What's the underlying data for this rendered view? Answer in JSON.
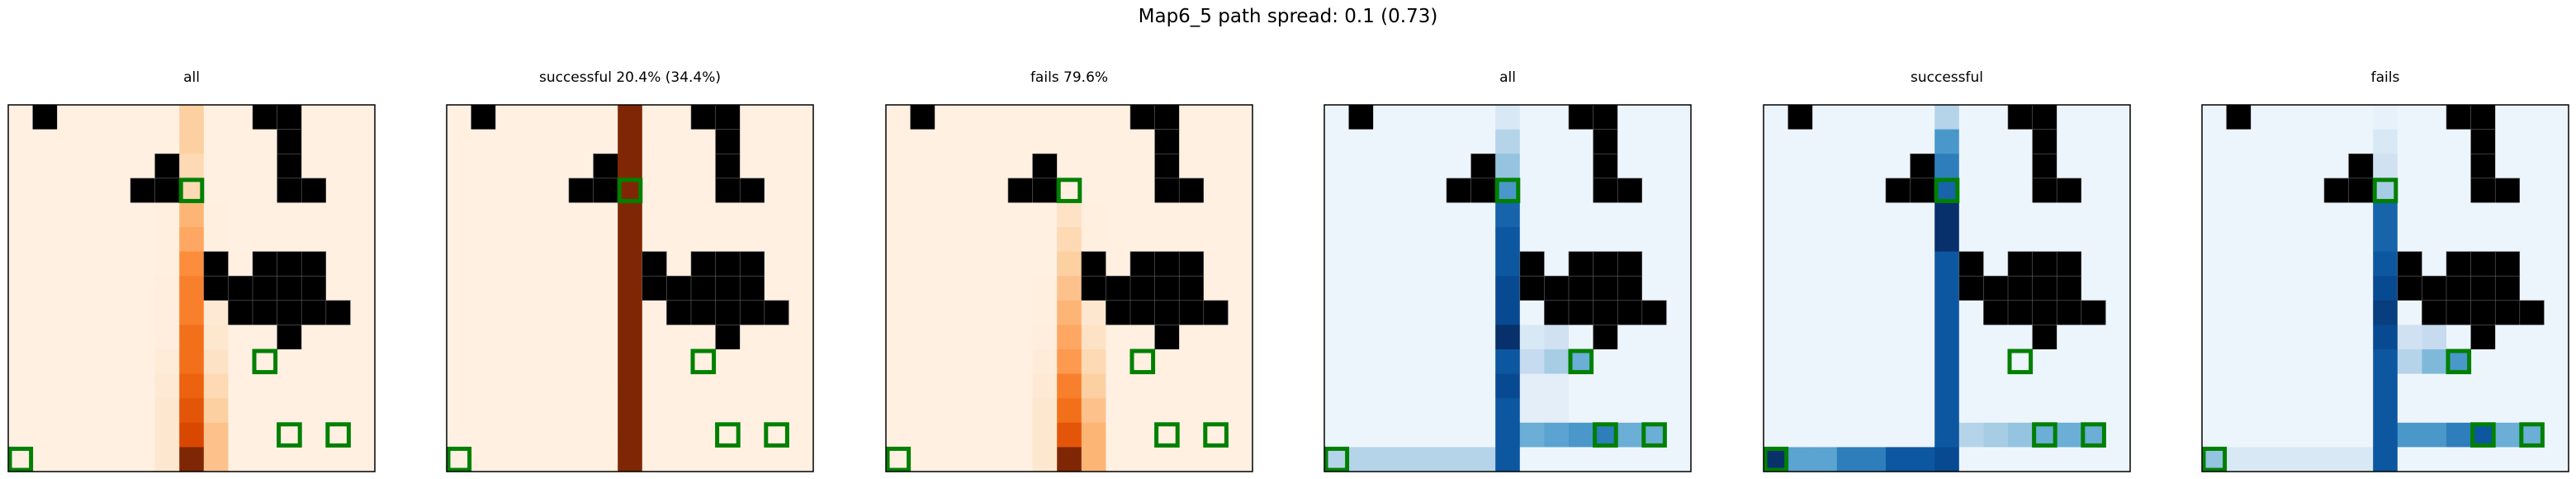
{
  "figure": {
    "suptitle": "Map6_5 path spread: 0.1 (0.73)"
  },
  "chart_data": [
    {
      "type": "heatmap",
      "title": "all",
      "colormap": "Oranges",
      "grid": [
        15,
        15
      ],
      "obstacles": [
        [
          1,
          0
        ],
        [
          10,
          0
        ],
        [
          11,
          0
        ],
        [
          11,
          1
        ],
        [
          6,
          2
        ],
        [
          11,
          2
        ],
        [
          5,
          3
        ],
        [
          6,
          3
        ],
        [
          11,
          3
        ],
        [
          12,
          3
        ],
        [
          8,
          6
        ],
        [
          10,
          6
        ],
        [
          11,
          6
        ],
        [
          12,
          6
        ],
        [
          8,
          7
        ],
        [
          9,
          7
        ],
        [
          10,
          7
        ],
        [
          11,
          7
        ],
        [
          12,
          7
        ],
        [
          9,
          8
        ],
        [
          10,
          8
        ],
        [
          11,
          8
        ],
        [
          12,
          8
        ],
        [
          13,
          8
        ],
        [
          11,
          9
        ]
      ],
      "markers": [
        [
          7,
          3
        ],
        [
          10,
          10
        ],
        [
          11,
          13
        ],
        [
          13,
          13
        ],
        [
          0,
          14
        ]
      ],
      "column_intensity": [
        [
          7,
          [
            0.25,
            0.25,
            0.2,
            0.2,
            0.35,
            0.4,
            0.5,
            0.55,
            0.55,
            0.6,
            0.6,
            0.65,
            0.7,
            0.75,
            1.0
          ]
        ],
        [
          8,
          [
            0,
            0,
            0,
            0,
            0.05,
            0.05,
            0.08,
            0.1,
            0.1,
            0.12,
            0.15,
            0.2,
            0.25,
            0.3,
            0.3
          ]
        ],
        [
          6,
          [
            0,
            0,
            0,
            0,
            0.05,
            0.05,
            0.05,
            0.06,
            0.06,
            0.06,
            0.08,
            0.1,
            0.12,
            0.12,
            0.12
          ]
        ]
      ],
      "base_intensity": 0.04
    },
    {
      "type": "heatmap",
      "title": "successful 20.4% (34.4%)",
      "colormap": "Oranges",
      "grid": [
        15,
        15
      ],
      "obstacles": [
        [
          1,
          0
        ],
        [
          10,
          0
        ],
        [
          11,
          0
        ],
        [
          11,
          1
        ],
        [
          6,
          2
        ],
        [
          11,
          2
        ],
        [
          5,
          3
        ],
        [
          6,
          3
        ],
        [
          11,
          3
        ],
        [
          12,
          3
        ],
        [
          8,
          6
        ],
        [
          10,
          6
        ],
        [
          11,
          6
        ],
        [
          12,
          6
        ],
        [
          8,
          7
        ],
        [
          9,
          7
        ],
        [
          10,
          7
        ],
        [
          11,
          7
        ],
        [
          12,
          7
        ],
        [
          9,
          8
        ],
        [
          10,
          8
        ],
        [
          11,
          8
        ],
        [
          12,
          8
        ],
        [
          13,
          8
        ],
        [
          11,
          9
        ]
      ],
      "markers": [
        [
          7,
          3
        ],
        [
          10,
          10
        ],
        [
          11,
          13
        ],
        [
          13,
          13
        ],
        [
          0,
          14
        ]
      ],
      "column_intensity": [
        [
          7,
          [
            1,
            1,
            1,
            1,
            1,
            1,
            1,
            1,
            1,
            1,
            1,
            1,
            1,
            1,
            1
          ]
        ]
      ],
      "base_intensity": 0.04
    },
    {
      "type": "heatmap",
      "title": "fails 79.6%",
      "colormap": "Oranges",
      "grid": [
        15,
        15
      ],
      "obstacles": [
        [
          1,
          0
        ],
        [
          10,
          0
        ],
        [
          11,
          0
        ],
        [
          11,
          1
        ],
        [
          6,
          2
        ],
        [
          11,
          2
        ],
        [
          5,
          3
        ],
        [
          6,
          3
        ],
        [
          11,
          3
        ],
        [
          12,
          3
        ],
        [
          8,
          6
        ],
        [
          10,
          6
        ],
        [
          11,
          6
        ],
        [
          12,
          6
        ],
        [
          8,
          7
        ],
        [
          9,
          7
        ],
        [
          10,
          7
        ],
        [
          11,
          7
        ],
        [
          12,
          7
        ],
        [
          9,
          8
        ],
        [
          10,
          8
        ],
        [
          11,
          8
        ],
        [
          12,
          8
        ],
        [
          13,
          8
        ],
        [
          11,
          9
        ]
      ],
      "markers": [
        [
          7,
          3
        ],
        [
          10,
          10
        ],
        [
          11,
          13
        ],
        [
          13,
          13
        ],
        [
          0,
          14
        ]
      ],
      "column_intensity": [
        [
          7,
          [
            0,
            0,
            0,
            0,
            0.15,
            0.2,
            0.25,
            0.3,
            0.35,
            0.4,
            0.45,
            0.55,
            0.6,
            0.7,
            1.0
          ]
        ],
        [
          8,
          [
            0,
            0,
            0,
            0,
            0.05,
            0.05,
            0.08,
            0.1,
            0.12,
            0.15,
            0.2,
            0.25,
            0.3,
            0.35,
            0.35
          ]
        ],
        [
          6,
          [
            0,
            0,
            0,
            0,
            0.03,
            0.03,
            0.04,
            0.05,
            0.05,
            0.06,
            0.08,
            0.1,
            0.12,
            0.12,
            0.12
          ]
        ]
      ],
      "base_intensity": 0.04
    },
    {
      "type": "heatmap",
      "title": "all",
      "colormap": "Blues",
      "grid": [
        15,
        15
      ],
      "obstacles": [
        [
          1,
          0
        ],
        [
          10,
          0
        ],
        [
          11,
          0
        ],
        [
          11,
          1
        ],
        [
          6,
          2
        ],
        [
          11,
          2
        ],
        [
          5,
          3
        ],
        [
          6,
          3
        ],
        [
          11,
          3
        ],
        [
          12,
          3
        ],
        [
          8,
          6
        ],
        [
          10,
          6
        ],
        [
          11,
          6
        ],
        [
          12,
          6
        ],
        [
          8,
          7
        ],
        [
          9,
          7
        ],
        [
          10,
          7
        ],
        [
          11,
          7
        ],
        [
          12,
          7
        ],
        [
          9,
          8
        ],
        [
          10,
          8
        ],
        [
          11,
          8
        ],
        [
          12,
          8
        ],
        [
          13,
          8
        ],
        [
          11,
          9
        ]
      ],
      "markers": [
        [
          7,
          3
        ],
        [
          10,
          10
        ],
        [
          11,
          13
        ],
        [
          13,
          13
        ],
        [
          0,
          14
        ]
      ],
      "column_intensity": [
        [
          7,
          [
            0.15,
            0.3,
            0.4,
            0.6,
            0.8,
            0.85,
            0.85,
            0.9,
            0.9,
            1.0,
            0.85,
            0.9,
            0.85,
            0.85,
            0.85
          ]
        ]
      ],
      "row_intensity": [
        [
          14,
          [
            0.3,
            0.3,
            0.3,
            0.3,
            0.3,
            0.3,
            0.3,
            0,
            0,
            0,
            0,
            0,
            0,
            0,
            0
          ]
        ],
        [
          13,
          [
            0,
            0,
            0,
            0,
            0,
            0,
            0,
            0,
            0.5,
            0.55,
            0.6,
            0.7,
            0.5,
            0.5,
            0
          ]
        ],
        [
          10,
          [
            0,
            0,
            0,
            0,
            0,
            0,
            0,
            0,
            0.25,
            0.35,
            0.5,
            0,
            0,
            0,
            0
          ]
        ],
        [
          9,
          [
            0,
            0,
            0,
            0,
            0,
            0,
            0,
            0,
            0.15,
            0.2,
            0,
            0,
            0,
            0,
            0
          ]
        ],
        [
          11,
          [
            0,
            0,
            0,
            0,
            0,
            0,
            0,
            0,
            0.1,
            0.1,
            0,
            0,
            0,
            0,
            0
          ]
        ],
        [
          12,
          [
            0,
            0,
            0,
            0,
            0,
            0,
            0,
            0,
            0.1,
            0.1,
            0,
            0,
            0,
            0,
            0
          ]
        ]
      ],
      "base_intensity": 0.05
    },
    {
      "type": "heatmap",
      "title": "successful",
      "colormap": "Blues",
      "grid": [
        15,
        15
      ],
      "obstacles": [
        [
          1,
          0
        ],
        [
          10,
          0
        ],
        [
          11,
          0
        ],
        [
          11,
          1
        ],
        [
          6,
          2
        ],
        [
          11,
          2
        ],
        [
          5,
          3
        ],
        [
          6,
          3
        ],
        [
          11,
          3
        ],
        [
          12,
          3
        ],
        [
          8,
          6
        ],
        [
          10,
          6
        ],
        [
          11,
          6
        ],
        [
          12,
          6
        ],
        [
          8,
          7
        ],
        [
          9,
          7
        ],
        [
          10,
          7
        ],
        [
          11,
          7
        ],
        [
          12,
          7
        ],
        [
          9,
          8
        ],
        [
          10,
          8
        ],
        [
          11,
          8
        ],
        [
          12,
          8
        ],
        [
          13,
          8
        ],
        [
          11,
          9
        ]
      ],
      "markers": [
        [
          7,
          3
        ],
        [
          10,
          10
        ],
        [
          11,
          13
        ],
        [
          13,
          13
        ],
        [
          0,
          14
        ]
      ],
      "column_intensity": [
        [
          7,
          [
            0.3,
            0.6,
            0.7,
            0.8,
            1.0,
            1.0,
            0.85,
            0.85,
            0.85,
            0.85,
            0.85,
            0.85,
            0.85,
            0.85,
            0.9
          ]
        ]
      ],
      "row_intensity": [
        [
          14,
          [
            1.0,
            0.55,
            0.55,
            0.7,
            0.7,
            0.85,
            0.85,
            0,
            0,
            0,
            0,
            0,
            0,
            0,
            0
          ]
        ],
        [
          13,
          [
            0,
            0,
            0,
            0,
            0,
            0,
            0,
            0,
            0.3,
            0.35,
            0.4,
            0.5,
            0.5,
            0.5,
            0
          ]
        ]
      ],
      "base_intensity": 0.05
    },
    {
      "type": "heatmap",
      "title": "fails",
      "colormap": "Blues",
      "grid": [
        15,
        15
      ],
      "obstacles": [
        [
          1,
          0
        ],
        [
          10,
          0
        ],
        [
          11,
          0
        ],
        [
          11,
          1
        ],
        [
          6,
          2
        ],
        [
          11,
          2
        ],
        [
          5,
          3
        ],
        [
          6,
          3
        ],
        [
          11,
          3
        ],
        [
          12,
          3
        ],
        [
          8,
          6
        ],
        [
          10,
          6
        ],
        [
          11,
          6
        ],
        [
          12,
          6
        ],
        [
          8,
          7
        ],
        [
          9,
          7
        ],
        [
          10,
          7
        ],
        [
          11,
          7
        ],
        [
          12,
          7
        ],
        [
          9,
          8
        ],
        [
          10,
          8
        ],
        [
          11,
          8
        ],
        [
          12,
          8
        ],
        [
          13,
          8
        ],
        [
          11,
          9
        ]
      ],
      "markers": [
        [
          7,
          3
        ],
        [
          10,
          10
        ],
        [
          11,
          13
        ],
        [
          13,
          13
        ],
        [
          0,
          14
        ]
      ],
      "column_intensity": [
        [
          7,
          [
            0.08,
            0.15,
            0.2,
            0.35,
            0.8,
            0.8,
            0.85,
            0.9,
            0.95,
            0.9,
            0.85,
            0.85,
            0.85,
            0.85,
            0.85
          ]
        ]
      ],
      "row_intensity": [
        [
          14,
          [
            0.4,
            0.15,
            0.15,
            0.15,
            0.15,
            0.15,
            0.15,
            0,
            0,
            0,
            0,
            0,
            0,
            0,
            0
          ]
        ],
        [
          13,
          [
            0,
            0,
            0,
            0,
            0,
            0,
            0,
            0,
            0.6,
            0.6,
            0.7,
            0.85,
            0.5,
            0.5,
            0
          ]
        ],
        [
          10,
          [
            0,
            0,
            0,
            0,
            0,
            0,
            0,
            0,
            0.3,
            0.45,
            0.6,
            0,
            0,
            0,
            0
          ]
        ],
        [
          9,
          [
            0,
            0,
            0,
            0,
            0,
            0,
            0,
            0,
            0.2,
            0.25,
            0,
            0,
            0,
            0,
            0
          ]
        ]
      ],
      "base_intensity": 0.05
    }
  ],
  "colors": {
    "obstacle": "#000000",
    "marker": "#008000",
    "axes": "#000000"
  }
}
